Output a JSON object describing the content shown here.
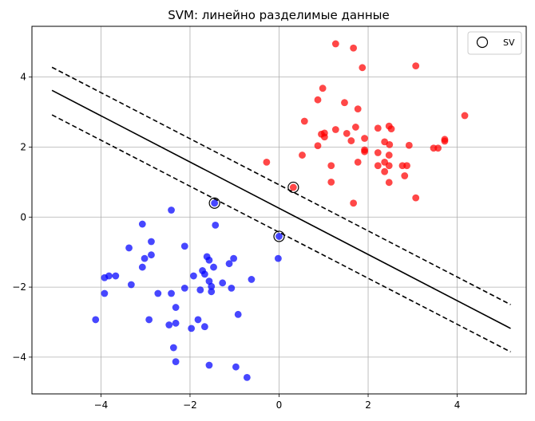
{
  "chart_data": {
    "type": "scatter",
    "title": "SVM: линейно разделимые данные",
    "xlabel": "",
    "ylabel": "",
    "xlim": [
      -5.55,
      5.55
    ],
    "ylim": [
      -5.05,
      5.45
    ],
    "xticks": [
      -4,
      -2,
      0,
      2,
      4
    ],
    "yticks": [
      -4,
      -2,
      0,
      2,
      4
    ],
    "xtick_labels": [
      "−4",
      "−2",
      "0",
      "2",
      "4"
    ],
    "ytick_labels": [
      "−4",
      "−2",
      "0",
      "2",
      "4"
    ],
    "grid": true,
    "legend": {
      "position": "top-right",
      "entries": [
        "SV"
      ]
    },
    "colors": {
      "class_pos": "#ff0000",
      "class_neg": "#0000ff",
      "lines": "#000000",
      "grid": "#b0b0b0"
    },
    "series": [
      {
        "color": "#ff0000",
        "points": [
          [
            1.27,
            4.95
          ],
          [
            1.67,
            4.83
          ],
          [
            1.87,
            4.27
          ],
          [
            3.07,
            4.32
          ],
          [
            0.98,
            3.68
          ],
          [
            0.87,
            3.35
          ],
          [
            1.47,
            3.27
          ],
          [
            1.77,
            3.09
          ],
          [
            0.57,
            2.74
          ],
          [
            0.95,
            2.37
          ],
          [
            1.02,
            2.4
          ],
          [
            1.02,
            2.29
          ],
          [
            1.27,
            2.5
          ],
          [
            1.52,
            2.39
          ],
          [
            1.72,
            2.57
          ],
          [
            1.92,
            2.25
          ],
          [
            1.62,
            2.18
          ],
          [
            0.87,
            2.04
          ],
          [
            2.22,
            2.54
          ],
          [
            2.37,
            2.15
          ],
          [
            2.47,
            2.6
          ],
          [
            2.52,
            2.52
          ],
          [
            2.48,
            2.07
          ],
          [
            2.92,
            2.05
          ],
          [
            2.22,
            1.84
          ],
          [
            1.92,
            1.92
          ],
          [
            1.92,
            1.87
          ],
          [
            2.47,
            1.77
          ],
          [
            3.47,
            1.97
          ],
          [
            3.57,
            1.97
          ],
          [
            3.72,
            2.17
          ],
          [
            3.72,
            2.22
          ],
          [
            4.17,
            2.9
          ],
          [
            0.52,
            1.77
          ],
          [
            1.77,
            1.57
          ],
          [
            2.22,
            1.47
          ],
          [
            2.37,
            1.57
          ],
          [
            2.47,
            1.47
          ],
          [
            2.37,
            1.3
          ],
          [
            2.77,
            1.47
          ],
          [
            2.87,
            1.47
          ],
          [
            1.17,
            1.47
          ],
          [
            2.82,
            1.18
          ],
          [
            2.47,
            0.99
          ],
          [
            1.17,
            1.0
          ],
          [
            3.07,
            0.55
          ],
          [
            1.67,
            0.4
          ],
          [
            -0.28,
            1.57
          ],
          [
            0.32,
            0.85
          ]
        ]
      },
      {
        "color": "#0000ff",
        "points": [
          [
            -2.42,
            0.2
          ],
          [
            -3.07,
            -0.2
          ],
          [
            -1.43,
            -0.23
          ],
          [
            -2.87,
            -0.7
          ],
          [
            -2.12,
            -0.83
          ],
          [
            -3.37,
            -0.88
          ],
          [
            -3.02,
            -1.18
          ],
          [
            -2.87,
            -1.08
          ],
          [
            -3.07,
            -1.43
          ],
          [
            -1.62,
            -1.13
          ],
          [
            -1.57,
            -1.23
          ],
          [
            -1.02,
            -1.18
          ],
          [
            -1.12,
            -1.33
          ],
          [
            -1.72,
            -1.53
          ],
          [
            -1.47,
            -1.43
          ],
          [
            -1.67,
            -1.63
          ],
          [
            -1.57,
            -1.83
          ],
          [
            -1.52,
            -1.98
          ],
          [
            -1.27,
            -1.88
          ],
          [
            -1.52,
            -2.13
          ],
          [
            -1.77,
            -2.08
          ],
          [
            -1.92,
            -1.68
          ],
          [
            -3.82,
            -1.68
          ],
          [
            -3.67,
            -1.68
          ],
          [
            -3.92,
            -1.73
          ],
          [
            -3.32,
            -1.93
          ],
          [
            -2.12,
            -2.03
          ],
          [
            -2.42,
            -2.18
          ],
          [
            -2.72,
            -2.18
          ],
          [
            -3.92,
            -2.18
          ],
          [
            -2.32,
            -2.58
          ],
          [
            -2.32,
            -3.03
          ],
          [
            -2.47,
            -3.08
          ],
          [
            -2.92,
            -2.93
          ],
          [
            -1.82,
            -2.93
          ],
          [
            -1.97,
            -3.18
          ],
          [
            -1.67,
            -3.13
          ],
          [
            -0.92,
            -2.78
          ],
          [
            -4.12,
            -2.93
          ],
          [
            -2.37,
            -3.73
          ],
          [
            -2.32,
            -4.13
          ],
          [
            -1.57,
            -4.23
          ],
          [
            -0.97,
            -4.28
          ],
          [
            -0.72,
            -4.58
          ],
          [
            -0.62,
            -1.78
          ],
          [
            -1.07,
            -2.03
          ],
          [
            -0.02,
            -1.18
          ],
          [
            -1.45,
            0.4
          ],
          [
            0.0,
            -0.55
          ]
        ]
      }
    ],
    "support_vectors": [
      [
        -1.45,
        0.4
      ],
      [
        0.32,
        0.85
      ],
      [
        0.0,
        -0.55
      ]
    ],
    "decision_boundary": {
      "x": [
        -5.1,
        5.2
      ],
      "y": [
        3.62,
        -3.18
      ]
    },
    "margin_upper": {
      "x": [
        -5.1,
        5.2
      ],
      "y": [
        4.28,
        -2.5
      ]
    },
    "margin_lower": {
      "x": [
        -5.1,
        5.2
      ],
      "y": [
        2.92,
        -3.85
      ]
    }
  }
}
